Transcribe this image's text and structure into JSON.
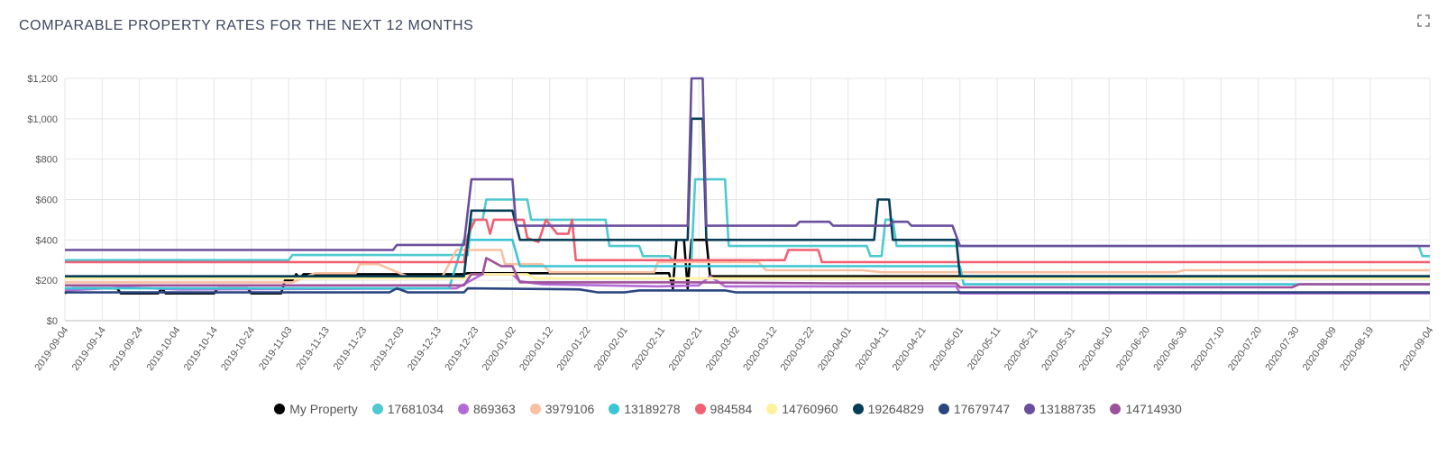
{
  "header": {
    "title": "COMPARABLE PROPERTY RATES FOR THE NEXT 12 MONTHS",
    "expand_icon": "expand-icon"
  },
  "chart_data": {
    "type": "line",
    "title": "COMPARABLE PROPERTY RATES FOR THE NEXT 12 MONTHS",
    "xlabel": "",
    "ylabel": "",
    "ylim": [
      0,
      1200
    ],
    "y_ticks": [
      "$0",
      "$200",
      "$400",
      "$600",
      "$800",
      "$1,000",
      "$1,200"
    ],
    "x_ticks": [
      "2019-09-04",
      "2019-09-14",
      "2019-09-24",
      "2019-10-04",
      "2019-10-14",
      "2019-10-24",
      "2019-11-03",
      "2019-11-13",
      "2019-11-23",
      "2019-12-03",
      "2019-12-13",
      "2019-12-23",
      "2020-01-02",
      "2020-01-12",
      "2020-01-22",
      "2020-02-01",
      "2020-02-11",
      "2020-02-21",
      "2020-03-02",
      "2020-03-12",
      "2020-03-22",
      "2020-04-01",
      "2020-04-11",
      "2020-04-21",
      "2020-05-01",
      "2020-05-11",
      "2020-05-21",
      "2020-05-31",
      "2020-06-10",
      "2020-06-20",
      "2020-06-30",
      "2020-07-10",
      "2020-07-20",
      "2020-07-30",
      "2020-08-09",
      "2020-08-19",
      "2020-09-04"
    ],
    "x_range": [
      "2019-09-04",
      "2020-09-04"
    ],
    "grid": true,
    "legend_position": "bottom",
    "series": [
      {
        "name": "My Property",
        "color": "#000000",
        "points": [
          [
            "2019-09-04",
            135
          ],
          [
            "2019-09-06",
            160
          ],
          [
            "2019-09-18",
            160
          ],
          [
            "2019-09-19",
            135
          ],
          [
            "2019-09-29",
            135
          ],
          [
            "2019-09-30",
            160
          ],
          [
            "2019-10-01",
            135
          ],
          [
            "2019-10-14",
            135
          ],
          [
            "2019-10-15",
            160
          ],
          [
            "2019-10-23",
            160
          ],
          [
            "2019-10-24",
            135
          ],
          [
            "2019-11-01",
            135
          ],
          [
            "2019-11-02",
            200
          ],
          [
            "2019-11-04",
            200
          ],
          [
            "2019-11-05",
            230
          ],
          [
            "2019-11-06",
            210
          ],
          [
            "2019-11-07",
            230
          ],
          [
            "2019-12-20",
            230
          ],
          [
            "2019-12-21",
            235
          ],
          [
            "2020-02-13",
            235
          ],
          [
            "2020-02-14",
            160
          ],
          [
            "2020-02-15",
            400
          ],
          [
            "2020-02-17",
            400
          ],
          [
            "2020-02-18",
            160
          ],
          [
            "2020-02-19",
            400
          ],
          [
            "2020-02-23",
            400
          ],
          [
            "2020-02-24",
            220
          ],
          [
            "2020-09-04",
            220
          ]
        ]
      },
      {
        "name": "17681034",
        "color": "#4ec9cf",
        "points": [
          [
            "2019-09-04",
            300
          ],
          [
            "2019-11-03",
            300
          ],
          [
            "2019-11-04",
            325
          ],
          [
            "2019-12-21",
            325
          ],
          [
            "2019-12-22",
            500
          ],
          [
            "2019-12-25",
            500
          ],
          [
            "2019-12-26",
            600
          ],
          [
            "2020-01-06",
            600
          ],
          [
            "2020-01-07",
            500
          ],
          [
            "2020-01-27",
            500
          ],
          [
            "2020-01-28",
            370
          ],
          [
            "2020-02-05",
            370
          ],
          [
            "2020-02-06",
            320
          ],
          [
            "2020-02-13",
            320
          ],
          [
            "2020-02-14",
            300
          ],
          [
            "2020-02-19",
            300
          ],
          [
            "2020-02-20",
            700
          ],
          [
            "2020-02-28",
            700
          ],
          [
            "2020-02-29",
            370
          ],
          [
            "2020-04-06",
            370
          ],
          [
            "2020-04-07",
            320
          ],
          [
            "2020-04-10",
            320
          ],
          [
            "2020-04-11",
            500
          ],
          [
            "2020-04-13",
            500
          ],
          [
            "2020-04-14",
            370
          ],
          [
            "2020-09-01",
            370
          ],
          [
            "2020-09-02",
            320
          ],
          [
            "2020-09-04",
            320
          ]
        ]
      },
      {
        "name": "869363",
        "color": "#b36ad6",
        "points": [
          [
            "2019-09-04",
            150
          ],
          [
            "2019-09-20",
            165
          ],
          [
            "2019-10-05",
            155
          ],
          [
            "2019-12-18",
            160
          ],
          [
            "2019-12-25",
            230
          ],
          [
            "2020-01-02",
            230
          ],
          [
            "2020-01-04",
            195
          ],
          [
            "2020-01-10",
            180
          ],
          [
            "2020-02-10",
            170
          ],
          [
            "2020-02-21",
            175
          ],
          [
            "2020-02-24",
            220
          ],
          [
            "2020-02-28",
            170
          ],
          [
            "2020-04-30",
            170
          ],
          [
            "2020-05-01",
            135
          ],
          [
            "2020-09-04",
            135
          ]
        ]
      },
      {
        "name": "3979106",
        "color": "#f9c1a1",
        "points": [
          [
            "2019-09-04",
            190
          ],
          [
            "2019-11-04",
            190
          ],
          [
            "2019-11-10",
            235
          ],
          [
            "2019-11-21",
            235
          ],
          [
            "2019-11-22",
            280
          ],
          [
            "2019-11-27",
            280
          ],
          [
            "2019-12-06",
            210
          ],
          [
            "2019-12-14",
            210
          ],
          [
            "2019-12-18",
            350
          ],
          [
            "2019-12-30",
            350
          ],
          [
            "2019-12-31",
            280
          ],
          [
            "2020-01-10",
            280
          ],
          [
            "2020-01-12",
            240
          ],
          [
            "2020-02-09",
            240
          ],
          [
            "2020-02-10",
            290
          ],
          [
            "2020-03-08",
            290
          ],
          [
            "2020-03-10",
            250
          ],
          [
            "2020-04-05",
            250
          ],
          [
            "2020-04-10",
            240
          ],
          [
            "2020-06-28",
            240
          ],
          [
            "2020-06-30",
            250
          ],
          [
            "2020-09-04",
            250
          ]
        ]
      },
      {
        "name": "13189278",
        "color": "#3cc5d4",
        "points": [
          [
            "2019-09-04",
            160
          ],
          [
            "2019-12-16",
            160
          ],
          [
            "2019-12-20",
            400
          ],
          [
            "2020-01-02",
            400
          ],
          [
            "2020-01-04",
            270
          ],
          [
            "2020-05-01",
            270
          ],
          [
            "2020-05-02",
            180
          ],
          [
            "2020-09-04",
            180
          ]
        ]
      },
      {
        "name": "984584",
        "color": "#f25f70",
        "points": [
          [
            "2019-09-04",
            290
          ],
          [
            "2019-12-20",
            290
          ],
          [
            "2019-12-21",
            420
          ],
          [
            "2019-12-23",
            500
          ],
          [
            "2019-12-26",
            500
          ],
          [
            "2019-12-27",
            430
          ],
          [
            "2019-12-28",
            500
          ],
          [
            "2020-01-05",
            500
          ],
          [
            "2020-01-06",
            410
          ],
          [
            "2020-01-09",
            390
          ],
          [
            "2020-01-11",
            500
          ],
          [
            "2020-01-14",
            430
          ],
          [
            "2020-01-17",
            430
          ],
          [
            "2020-01-18",
            500
          ],
          [
            "2020-01-19",
            300
          ],
          [
            "2020-02-28",
            300
          ],
          [
            "2020-03-15",
            300
          ],
          [
            "2020-03-16",
            350
          ],
          [
            "2020-03-24",
            350
          ],
          [
            "2020-03-25",
            290
          ],
          [
            "2020-09-04",
            290
          ]
        ]
      },
      {
        "name": "14760960",
        "color": "#fef29d",
        "points": [
          [
            "2019-09-04",
            210
          ],
          [
            "2019-12-20",
            210
          ],
          [
            "2019-12-22",
            230
          ],
          [
            "2020-01-06",
            230
          ],
          [
            "2020-01-08",
            210
          ],
          [
            "2020-09-04",
            210
          ]
        ]
      },
      {
        "name": "19264829",
        "color": "#063e56",
        "points": [
          [
            "2019-09-04",
            220
          ],
          [
            "2019-12-20",
            220
          ],
          [
            "2019-12-22",
            545
          ],
          [
            "2020-01-02",
            545
          ],
          [
            "2020-01-04",
            400
          ],
          [
            "2020-02-18",
            400
          ],
          [
            "2020-02-19",
            1000
          ],
          [
            "2020-02-22",
            1000
          ],
          [
            "2020-02-23",
            400
          ],
          [
            "2020-04-08",
            400
          ],
          [
            "2020-04-09",
            600
          ],
          [
            "2020-04-12",
            600
          ],
          [
            "2020-04-13",
            400
          ],
          [
            "2020-04-30",
            400
          ],
          [
            "2020-05-01",
            220
          ],
          [
            "2020-09-04",
            220
          ]
        ]
      },
      {
        "name": "17679747",
        "color": "#2a4580",
        "points": [
          [
            "2019-09-04",
            140
          ],
          [
            "2019-11-30",
            140
          ],
          [
            "2019-12-02",
            160
          ],
          [
            "2019-12-05",
            140
          ],
          [
            "2019-12-20",
            140
          ],
          [
            "2019-12-21",
            160
          ],
          [
            "2020-01-20",
            155
          ],
          [
            "2020-01-25",
            140
          ],
          [
            "2020-02-01",
            140
          ],
          [
            "2020-02-05",
            150
          ],
          [
            "2020-02-28",
            150
          ],
          [
            "2020-03-02",
            140
          ],
          [
            "2020-05-02",
            140
          ],
          [
            "2020-09-04",
            140
          ]
        ]
      },
      {
        "name": "13188735",
        "color": "#6a4f9c",
        "points": [
          [
            "2019-09-04",
            350
          ],
          [
            "2019-12-01",
            350
          ],
          [
            "2019-12-02",
            375
          ],
          [
            "2019-12-20",
            375
          ],
          [
            "2019-12-22",
            700
          ],
          [
            "2020-01-02",
            700
          ],
          [
            "2020-01-03",
            470
          ],
          [
            "2020-02-18",
            470
          ],
          [
            "2020-02-19",
            1200
          ],
          [
            "2020-02-22",
            1200
          ],
          [
            "2020-02-23",
            470
          ],
          [
            "2020-03-18",
            470
          ],
          [
            "2020-03-19",
            490
          ],
          [
            "2020-03-27",
            490
          ],
          [
            "2020-03-28",
            470
          ],
          [
            "2020-04-12",
            470
          ],
          [
            "2020-04-13",
            490
          ],
          [
            "2020-04-17",
            490
          ],
          [
            "2020-04-18",
            470
          ],
          [
            "2020-04-29",
            470
          ],
          [
            "2020-05-01",
            370
          ],
          [
            "2020-09-04",
            370
          ]
        ]
      },
      {
        "name": "14714930",
        "color": "#9e519a",
        "points": [
          [
            "2019-09-04",
            175
          ],
          [
            "2019-12-20",
            175
          ],
          [
            "2019-12-22",
            230
          ],
          [
            "2019-12-25",
            230
          ],
          [
            "2019-12-26",
            310
          ],
          [
            "2019-12-30",
            270
          ],
          [
            "2020-01-02",
            270
          ],
          [
            "2020-01-04",
            190
          ],
          [
            "2020-02-20",
            190
          ],
          [
            "2020-03-28",
            185
          ],
          [
            "2020-04-30",
            185
          ],
          [
            "2020-05-01",
            165
          ],
          [
            "2020-07-29",
            165
          ],
          [
            "2020-07-31",
            180
          ],
          [
            "2020-09-04",
            180
          ]
        ]
      }
    ]
  }
}
